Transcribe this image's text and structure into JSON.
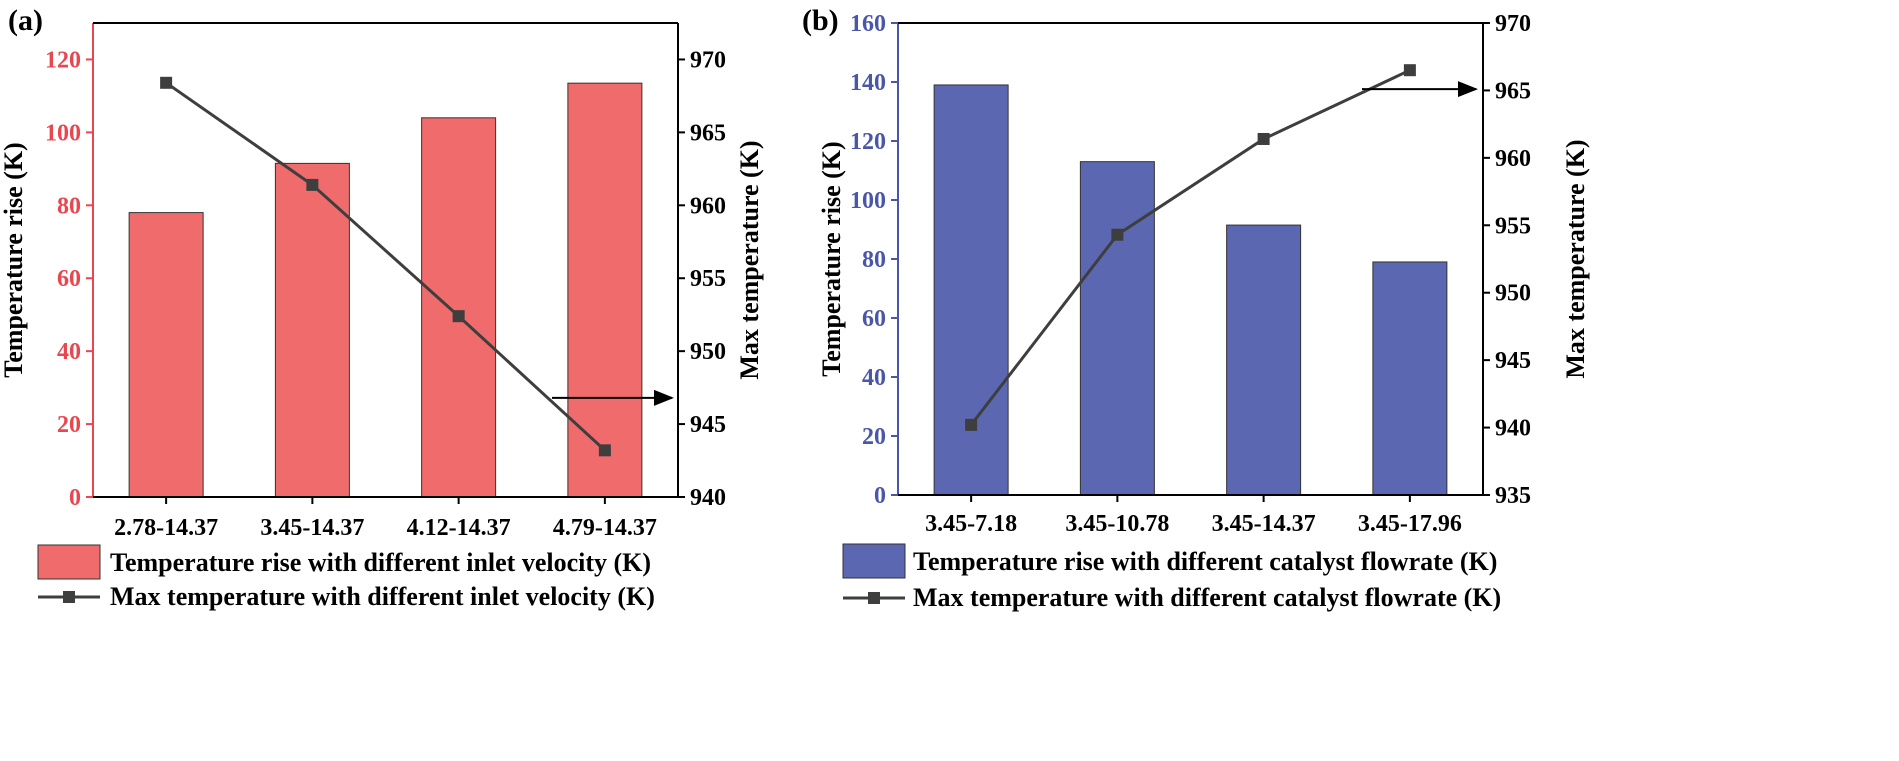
{
  "colors": {
    "bar_a": "#F06B6B",
    "axis_a_left": "#E8474F",
    "bar_b": "#5B67B0",
    "axis_b_left": "#4A57A8",
    "line": "#3E3E3E",
    "axis": "#000000"
  },
  "chart_data": [
    {
      "panel_label": "(a)",
      "type": "bar",
      "categories": [
        "2.78-14.37",
        "3.45-14.37",
        "4.12-14.37",
        "4.79-14.37"
      ],
      "ylabel": "Temperature rise (K)",
      "ylabel_right": "Max temperature (K)",
      "ylim": [
        0,
        130
      ],
      "yticks": [
        0,
        20,
        40,
        60,
        80,
        100,
        120
      ],
      "ylim_right": [
        940,
        972.5
      ],
      "yticks_right": [
        940,
        945,
        950,
        955,
        960,
        965,
        970
      ],
      "series": [
        {
          "name": "Temperature rise with different inlet velocity (K)",
          "type": "bar",
          "axis": "left",
          "values": [
            78,
            91.5,
            104,
            113.5
          ]
        },
        {
          "name": "Max temperature with different inlet velocity (K)",
          "type": "line",
          "axis": "right",
          "marker": "square",
          "values": [
            968.4,
            961.4,
            952.4,
            943.2
          ]
        }
      ],
      "annotation": "arrow pointing to right axis",
      "grid": false
    },
    {
      "panel_label": "(b)",
      "type": "bar",
      "categories": [
        "3.45-7.18",
        "3.45-10.78",
        "3.45-14.37",
        "3.45-17.96"
      ],
      "ylabel": "Temperature rise (K)",
      "ylabel_right": "Max temperature (K)",
      "ylim": [
        0,
        160
      ],
      "yticks": [
        0,
        20,
        40,
        60,
        80,
        100,
        120,
        140,
        160
      ],
      "ylim_right": [
        935,
        970
      ],
      "yticks_right": [
        935,
        940,
        945,
        950,
        955,
        960,
        965,
        970
      ],
      "series": [
        {
          "name": "Temperature rise with different catalyst flowrate (K)",
          "type": "bar",
          "axis": "left",
          "values": [
            139,
            113,
            91.5,
            79
          ]
        },
        {
          "name": "Max temperature with different catalyst flowrate (K)",
          "type": "line",
          "axis": "right",
          "marker": "square",
          "values": [
            940.2,
            954.3,
            961.4,
            966.5
          ]
        }
      ],
      "annotation": "arrow pointing to right axis",
      "grid": false
    }
  ]
}
